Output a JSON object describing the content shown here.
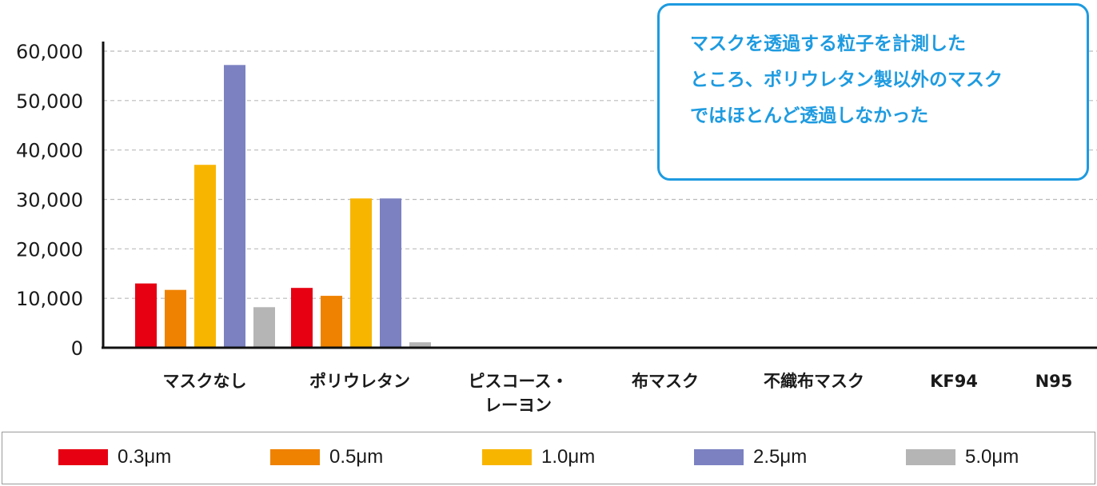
{
  "chart_data": {
    "type": "bar",
    "categories": [
      "マスクなし",
      "ポリウレタン",
      "ピスコース・レーヨン",
      "布マスク",
      "不織布マスク",
      "KF94",
      "N95"
    ],
    "category_lines": [
      [
        "マスクなし"
      ],
      [
        "ポリウレタン"
      ],
      [
        "ピスコース・",
        "レーヨン"
      ],
      [
        "布マスク"
      ],
      [
        "不織布マスク"
      ],
      [
        "KF94"
      ],
      [
        "N95"
      ]
    ],
    "series": [
      {
        "name": "0.3μm",
        "color": "#e60012",
        "values": [
          13000,
          12100,
          0,
          0,
          0,
          0,
          0
        ]
      },
      {
        "name": "0.5μm",
        "color": "#ef8200",
        "values": [
          11700,
          10500,
          0,
          0,
          0,
          0,
          0
        ]
      },
      {
        "name": "1.0μm",
        "color": "#f8b500",
        "values": [
          37000,
          30200,
          0,
          0,
          0,
          0,
          0
        ]
      },
      {
        "name": "2.5μm",
        "color": "#7b81c1",
        "values": [
          57200,
          30200,
          0,
          0,
          0,
          0,
          0
        ]
      },
      {
        "name": "5.0μm",
        "color": "#b5b5b5",
        "values": [
          8200,
          1100,
          0,
          0,
          0,
          0,
          0
        ]
      }
    ],
    "yticks": [
      "0",
      "10,000",
      "20,000",
      "30,000",
      "40,000",
      "50,000",
      "60,000"
    ],
    "ylim": [
      0,
      60000
    ],
    "grid": true,
    "legend": "bottom",
    "annotation_lines": [
      "マスクを透過する粒子を計測した",
      "ところ、ポリウレタン製以外のマスク",
      "ではほとんど透過しなかった"
    ]
  },
  "colors": {
    "callout": "#1e9be0",
    "grid": "#bbbbbb",
    "axis": "#111111"
  }
}
